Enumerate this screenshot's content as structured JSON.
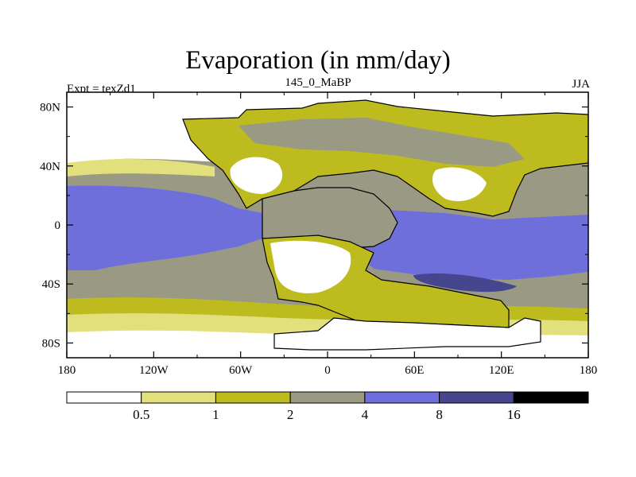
{
  "chart_data": {
    "type": "heatmap",
    "title": "Evaporation (in mm/day)",
    "subtitle": "145_0_MaBP",
    "left_label": "Expt = texZd1",
    "right_label": "JJA",
    "x_ticks": [
      "180",
      "120W",
      "60W",
      "0",
      "60E",
      "120E",
      "180"
    ],
    "y_ticks": [
      "80N",
      "40N",
      "0",
      "40S",
      "80S"
    ],
    "x_range": [
      -180,
      180
    ],
    "y_range": [
      -90,
      90
    ],
    "colorbar": {
      "labels": [
        "0.5",
        "1",
        "2",
        "4",
        "8",
        "16"
      ],
      "bins": [
        {
          "range": "<0.5",
          "color": "#ffffff"
        },
        {
          "range": "0.5-1",
          "color": "#e2e07c"
        },
        {
          "range": "1-2",
          "color": "#bebb1e"
        },
        {
          "range": "2-4",
          "color": "#9a9a84"
        },
        {
          "range": "4-8",
          "color": "#6f6fdc"
        },
        {
          "range": "8-16",
          "color": "#46468e"
        },
        {
          "range": ">16",
          "color": "#000000"
        }
      ]
    }
  }
}
